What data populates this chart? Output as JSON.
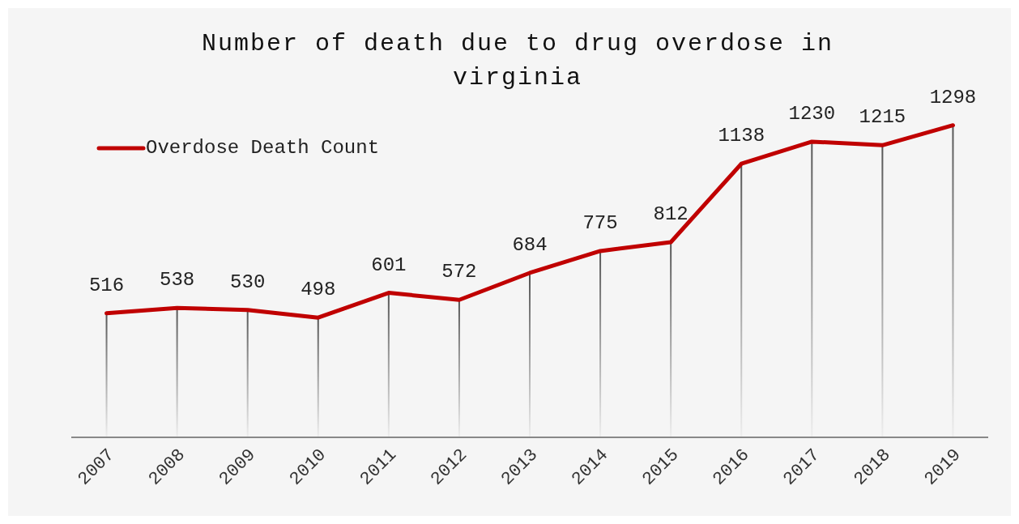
{
  "chart_data": {
    "type": "line",
    "title": "Number of death due to drug overdose in virginia",
    "categories": [
      "2007",
      "2008",
      "2009",
      "2010",
      "2011",
      "2012",
      "2013",
      "2014",
      "2015",
      "2016",
      "2017",
      "2018",
      "2019"
    ],
    "series": [
      {
        "type": "bar",
        "color": "#555555",
        "values": [
          516,
          538,
          530,
          498,
          601,
          572,
          684,
          775,
          812,
          1138,
          1230,
          1215,
          1298
        ]
      },
      {
        "name": "Overdose Death Count",
        "color": "#c00000",
        "values": [
          516,
          538,
          530,
          498,
          601,
          572,
          684,
          775,
          812,
          1138,
          1230,
          1215,
          1298
        ],
        "value_labels": [
          "516",
          "538",
          "530",
          "498",
          "601",
          "572",
          "684",
          "775",
          "812",
          "1138",
          "1230",
          "1215",
          "1298"
        ]
      }
    ],
    "legend": "top left",
    "grid": false,
    "marker": "none",
    "line_style": "solid",
    "tick_labels": "x"
  }
}
